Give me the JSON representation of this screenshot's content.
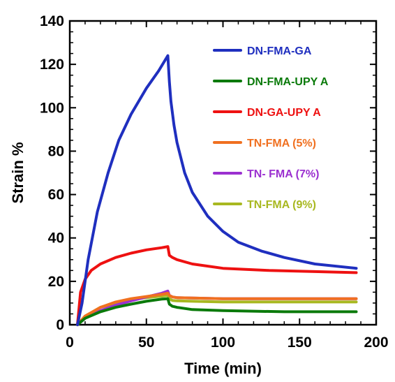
{
  "chart_data": {
    "type": "line",
    "xlabel": "Time (min)",
    "ylabel": "Strain %",
    "xlim": [
      0,
      200
    ],
    "ylim": [
      0,
      140
    ],
    "xticks": [
      0,
      50,
      100,
      150,
      200
    ],
    "yticks": [
      0,
      20,
      40,
      60,
      80,
      100,
      120,
      140
    ],
    "grid": false,
    "legend_position": "top-right",
    "series": [
      {
        "name": "DN-FMA-GA",
        "color": "#1f2fbf",
        "x": [
          5,
          8,
          12,
          18,
          25,
          32,
          40,
          50,
          58,
          64,
          65,
          66,
          68,
          70,
          75,
          80,
          90,
          100,
          110,
          125,
          140,
          160,
          187
        ],
        "y": [
          0,
          10,
          30,
          52,
          70,
          85,
          97,
          109,
          117,
          124,
          112,
          103,
          92,
          84,
          70,
          61,
          50,
          43,
          38,
          34,
          31,
          28,
          26
        ]
      },
      {
        "name": "DN-FMA-UPY A",
        "color": "#0a7a0a",
        "x": [
          5,
          10,
          20,
          30,
          40,
          50,
          60,
          64,
          65,
          67,
          70,
          80,
          100,
          140,
          187
        ],
        "y": [
          0,
          3,
          6,
          8,
          9.5,
          10.8,
          11.8,
          12,
          9.5,
          8.5,
          8,
          7,
          6.5,
          6,
          6
        ]
      },
      {
        "name": "DN-GA-UPY A",
        "color": "#ee1111",
        "x": [
          5,
          7,
          10,
          14,
          20,
          30,
          40,
          50,
          60,
          64,
          65,
          67,
          70,
          80,
          100,
          130,
          160,
          187
        ],
        "y": [
          0,
          15,
          21,
          25,
          28,
          31,
          33,
          34.5,
          35.5,
          36,
          32,
          31,
          30,
          28,
          26,
          25,
          24.5,
          24
        ]
      },
      {
        "name": "TN-FMA (5%)",
        "color": "#f07020",
        "x": [
          5,
          10,
          20,
          30,
          40,
          50,
          60,
          64,
          65,
          67,
          70,
          80,
          100,
          140,
          187
        ],
        "y": [
          0,
          4,
          8,
          10.5,
          12,
          13,
          14,
          14.5,
          13.5,
          12.8,
          12.5,
          12.3,
          12,
          12,
          12
        ]
      },
      {
        "name": "TN- FMA (7%)",
        "color": "#9b30d0",
        "x": [
          5,
          10,
          20,
          30,
          40,
          50,
          60,
          64,
          65,
          67,
          70,
          80,
          100,
          140,
          187
        ],
        "y": [
          0,
          3,
          6.5,
          9,
          11,
          12.8,
          14.5,
          15.5,
          13.5,
          12.8,
          12.5,
          12.3,
          12,
          12,
          12
        ]
      },
      {
        "name": "TN-FMA (9%)",
        "color": "#a8b820",
        "x": [
          5,
          10,
          20,
          30,
          40,
          50,
          60,
          64,
          65,
          67,
          70,
          80,
          100,
          140,
          187
        ],
        "y": [
          0,
          4,
          8,
          10,
          11.5,
          12.5,
          13.2,
          13.5,
          12,
          11.2,
          11,
          10.8,
          10.5,
          10.5,
          10.5
        ]
      }
    ]
  }
}
